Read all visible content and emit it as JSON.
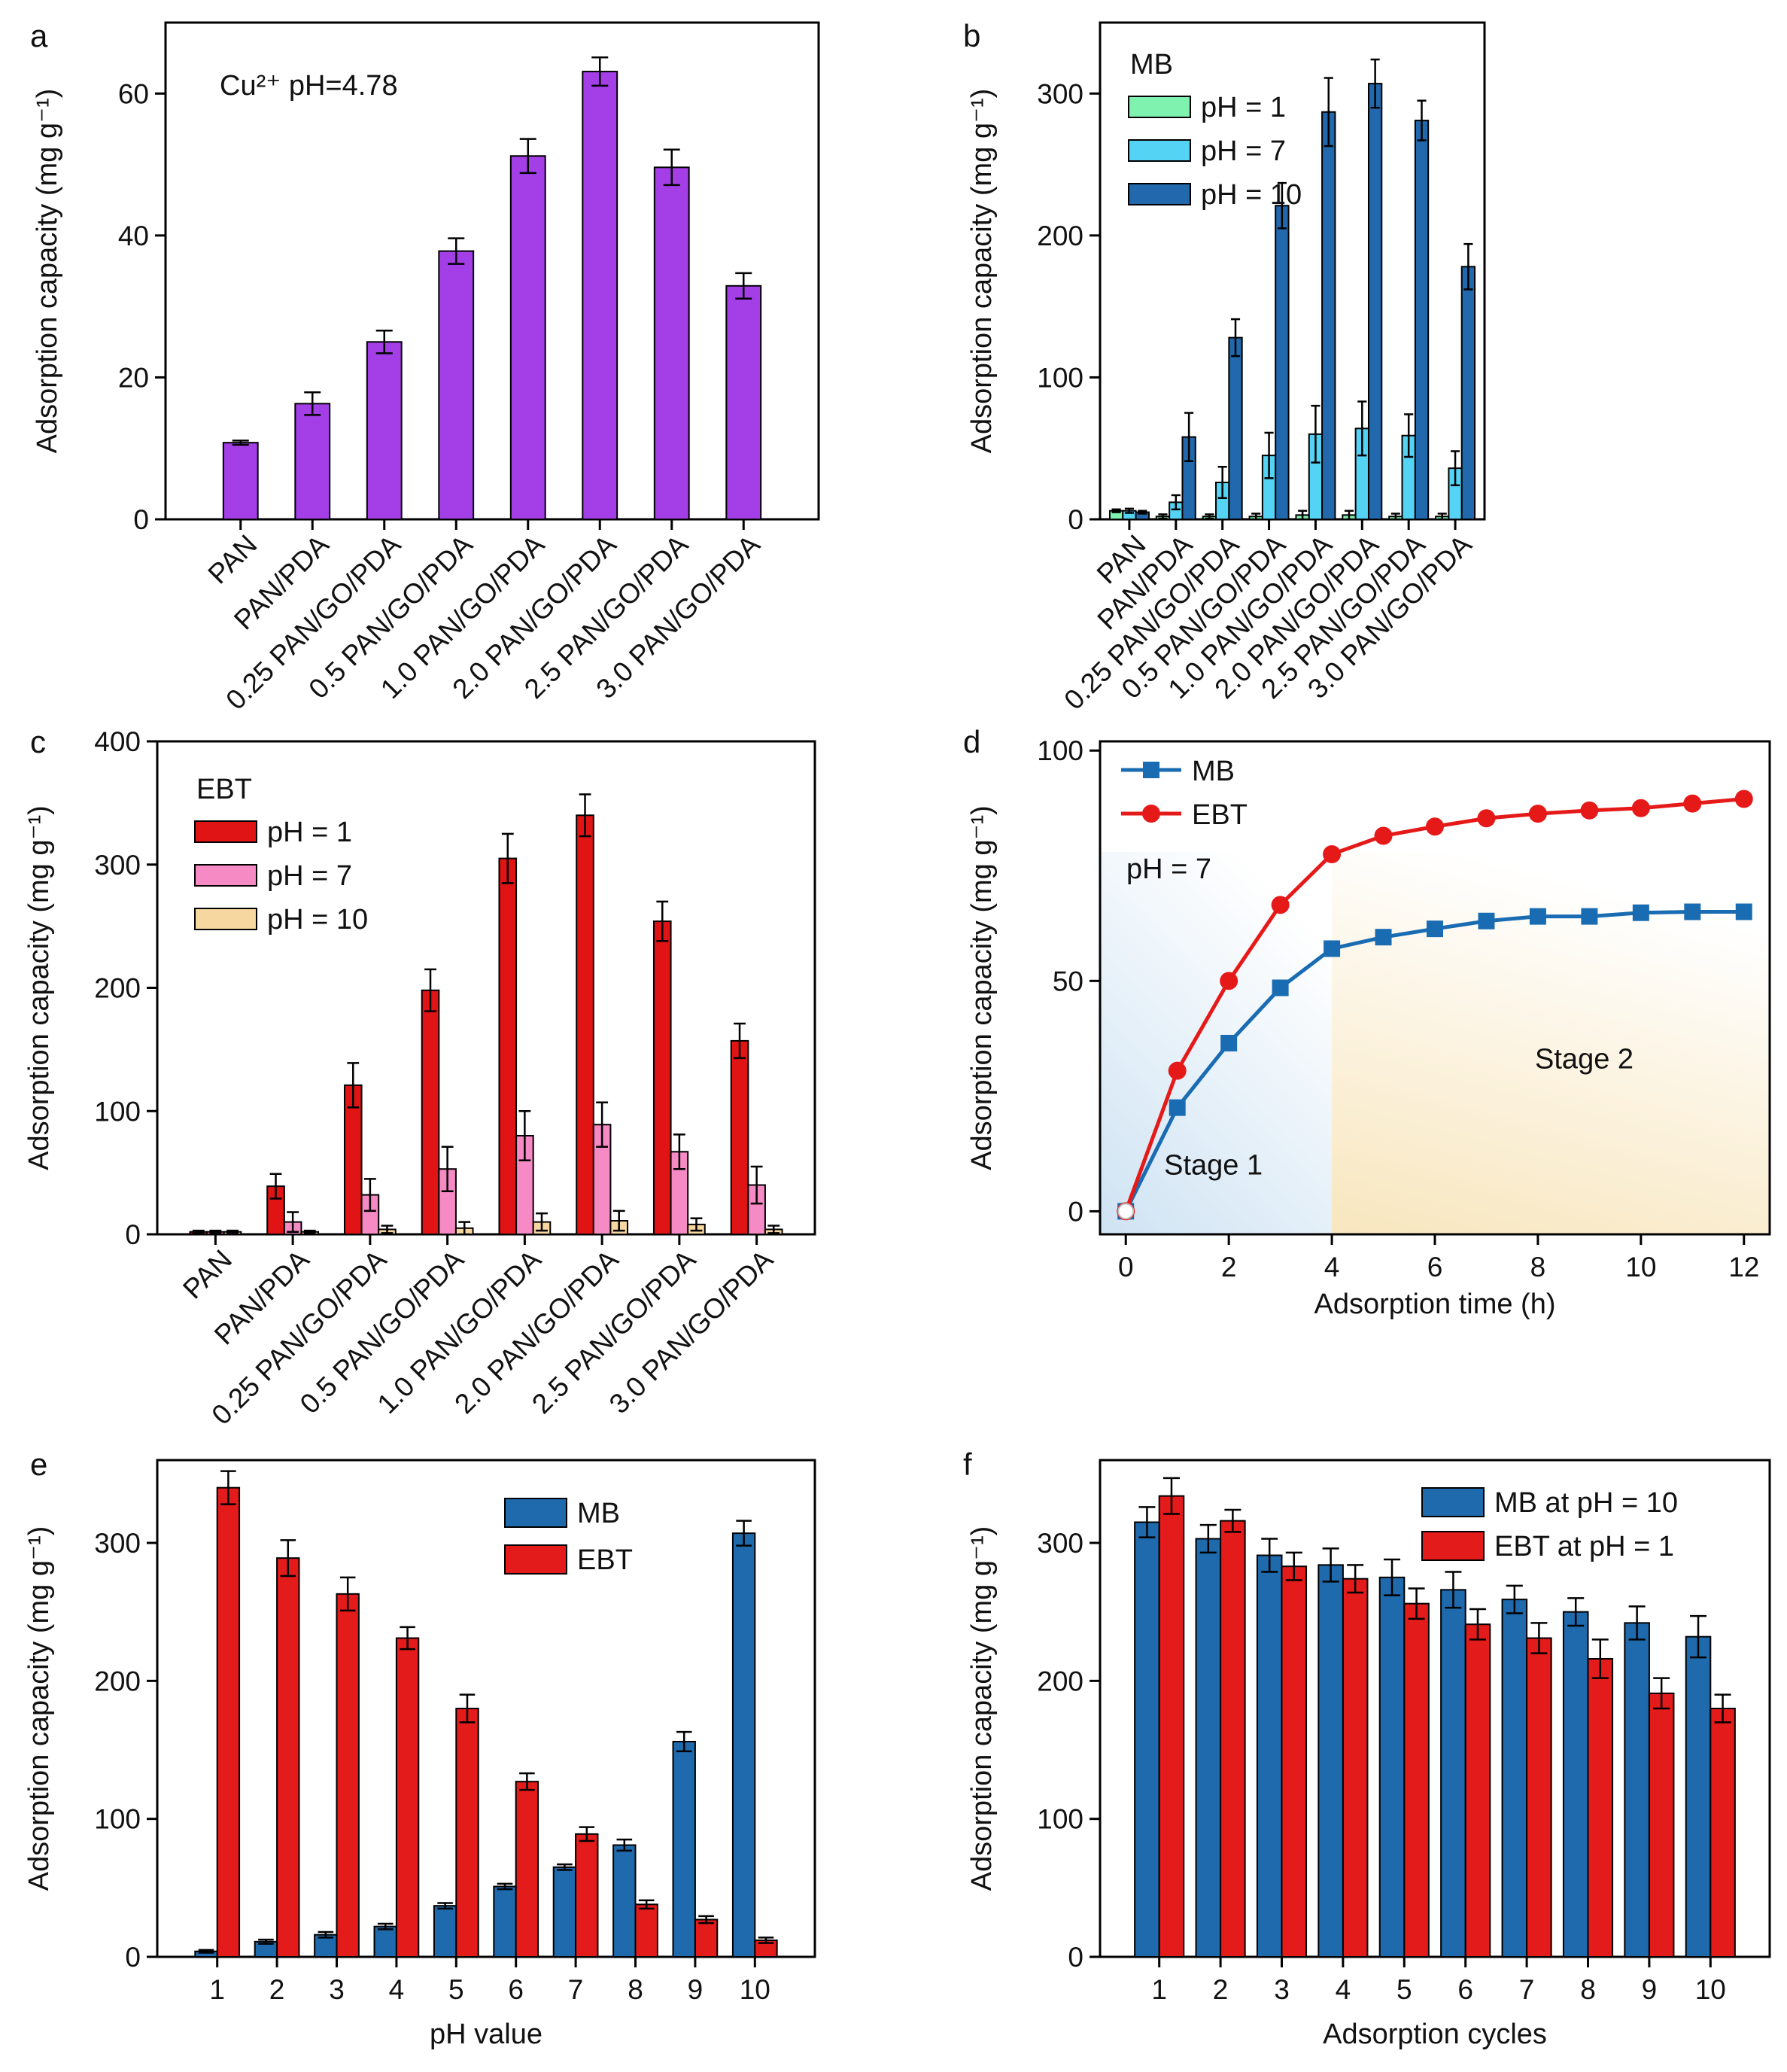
{
  "figure": {
    "panels": [
      "a",
      "b",
      "c",
      "d",
      "e",
      "f"
    ]
  },
  "colors": {
    "purple": "#a43fe8",
    "mb_ph1": "#80f2b0",
    "mb_ph7": "#55d3f5",
    "mb_ph10": "#2169ac",
    "ebt_ph1": "#e01414",
    "ebt_ph7": "#f58ac4",
    "ebt_ph10": "#f7d7a0",
    "line_mb": "#1a6cb2",
    "line_ebt": "#e61919",
    "bar_mb": "#1f6aad",
    "bar_ebt": "#e31b1b",
    "stage1_bg": "#cfe3f3",
    "stage2_bg": "#f8e6be"
  },
  "chart_data": [
    {
      "panel": "a",
      "type": "bar",
      "ylabel": "Adsorption capacity (mg g⁻¹)",
      "xlabel": "",
      "ylim": [
        0,
        70
      ],
      "yticks": [
        0,
        20,
        40,
        60
      ],
      "annotation": "Cu²⁺ pH=4.78",
      "categories": [
        "PAN",
        "PAN/PDA",
        "0.25 PAN/GO/PDA",
        "0.5 PAN/GO/PDA",
        "1.0 PAN/GO/PDA",
        "2.0 PAN/GO/PDA",
        "2.5 PAN/GO/PDA",
        "3.0 PAN/GO/PDA"
      ],
      "series": [
        {
          "name": "Cu²⁺",
          "color": "#a43fe8",
          "values": [
            10.8,
            16.3,
            25,
            37.8,
            51.2,
            63.1,
            49.6,
            32.9
          ],
          "errors": [
            0.3,
            1.6,
            1.6,
            1.8,
            2.4,
            2.0,
            2.5,
            1.8
          ]
        }
      ]
    },
    {
      "panel": "b",
      "type": "bar",
      "ylabel": "Adsorption capacity (mg g⁻¹)",
      "xlabel": "",
      "ylim": [
        0,
        350
      ],
      "yticks": [
        0,
        100,
        200,
        300
      ],
      "legend_title": "MB",
      "legend_position": "top-left",
      "categories": [
        "PAN",
        "PAN/PDA",
        "0.25 PAN/GO/PDA",
        "0.5 PAN/GO/PDA",
        "1.0 PAN/GO/PDA",
        "2.0 PAN/GO/PDA",
        "2.5 PAN/GO/PDA",
        "3.0 PAN/GO/PDA"
      ],
      "series": [
        {
          "name": "pH = 1",
          "color": "#80f2b0",
          "values": [
            6,
            2,
            2,
            2,
            3,
            3,
            2,
            2
          ],
          "errors": [
            1,
            1.5,
            1.5,
            2,
            3,
            3,
            2,
            2
          ]
        },
        {
          "name": "pH = 7",
          "color": "#55d3f5",
          "values": [
            6,
            12,
            26,
            45,
            60,
            64,
            59,
            36
          ],
          "errors": [
            1.5,
            5,
            11,
            16,
            20,
            19,
            15,
            12
          ]
        },
        {
          "name": "pH = 10",
          "color": "#2169ac",
          "values": [
            5,
            58,
            128,
            221,
            287,
            307,
            281,
            178
          ],
          "errors": [
            1,
            17,
            13,
            16,
            24,
            17,
            14,
            16
          ]
        }
      ]
    },
    {
      "panel": "c",
      "type": "bar",
      "ylabel": "Adsorption capacity (mg g⁻¹)",
      "xlabel": "",
      "ylim": [
        0,
        400
      ],
      "yticks": [
        0,
        100,
        200,
        300,
        400
      ],
      "legend_title": "EBT",
      "legend_position": "top-left",
      "categories": [
        "PAN",
        "PAN/PDA",
        "0.25 PAN/GO/PDA",
        "0.5 PAN/GO/PDA",
        "1.0 PAN/GO/PDA",
        "2.0 PAN/GO/PDA",
        "2.5 PAN/GO/PDA",
        "3.0 PAN/GO/PDA"
      ],
      "series": [
        {
          "name": "pH = 1",
          "color": "#e01414",
          "values": [
            2,
            39,
            121,
            198,
            305,
            340,
            254,
            157
          ],
          "errors": [
            1,
            10,
            18,
            17,
            20,
            17,
            16,
            14
          ]
        },
        {
          "name": "pH = 7",
          "color": "#f58ac4",
          "values": [
            2,
            10,
            32,
            53,
            80,
            89,
            67,
            40
          ],
          "errors": [
            1,
            8,
            13,
            18,
            20,
            18,
            14,
            15
          ]
        },
        {
          "name": "pH = 10",
          "color": "#f7d7a0",
          "values": [
            2,
            2,
            4,
            5,
            10,
            11,
            8,
            4
          ],
          "errors": [
            1,
            1,
            3,
            5,
            7,
            8,
            5,
            3
          ]
        }
      ]
    },
    {
      "panel": "d",
      "type": "line",
      "ylabel": "Adsorption capacity (mg g⁻¹)",
      "xlabel": "Adsorption time (h)",
      "xlim": [
        -0.5,
        12.5
      ],
      "ylim": [
        -5,
        102
      ],
      "xticks": [
        0,
        2,
        4,
        6,
        8,
        10,
        12
      ],
      "yticks": [
        0,
        50,
        100
      ],
      "annotation": "pH = 7",
      "regions": [
        {
          "label": "Stage 1",
          "from": -0.5,
          "to": 4
        },
        {
          "label": "Stage 2",
          "from": 4,
          "to": 12.5
        }
      ],
      "x": [
        0,
        1,
        2,
        3,
        4,
        5,
        6,
        7,
        8,
        9,
        10,
        11,
        12
      ],
      "series": [
        {
          "name": "MB",
          "marker": "square",
          "color": "#1a6cb2",
          "values": [
            0,
            22.5,
            36.5,
            48.5,
            57,
            59.5,
            61.3,
            63,
            64,
            64,
            64.8,
            65,
            65
          ]
        },
        {
          "name": "EBT",
          "marker": "circle",
          "color": "#e61919",
          "values": [
            0,
            30.5,
            50,
            66.5,
            77.5,
            81.5,
            83.5,
            85.3,
            86.3,
            87,
            87.5,
            88.5,
            89.5
          ]
        }
      ]
    },
    {
      "panel": "e",
      "type": "bar",
      "ylabel": "Adsorption capacity (mg g⁻¹)",
      "xlabel": "pH value",
      "ylim": [
        0,
        360
      ],
      "yticks": [
        0,
        100,
        200,
        300
      ],
      "legend_position": "top-center",
      "categories": [
        "1",
        "2",
        "3",
        "4",
        "5",
        "6",
        "7",
        "8",
        "9",
        "10"
      ],
      "series": [
        {
          "name": "MB",
          "color": "#1f6aad",
          "values": [
            4,
            11,
            16,
            22,
            37,
            51,
            65,
            81,
            156,
            307
          ],
          "errors": [
            1,
            1.5,
            2,
            2,
            2,
            2,
            2,
            4,
            7,
            9
          ]
        },
        {
          "name": "EBT",
          "color": "#e31b1b",
          "values": [
            340,
            289,
            263,
            231,
            180,
            127,
            89,
            38,
            27,
            12
          ],
          "errors": [
            12,
            13,
            12,
            8,
            10,
            6,
            5,
            3,
            2.5,
            2
          ]
        }
      ]
    },
    {
      "panel": "f",
      "type": "bar",
      "ylabel": "Adsorption capacity (mg g⁻¹)",
      "xlabel": "Adsorption cycles",
      "ylim": [
        0,
        360
      ],
      "yticks": [
        0,
        100,
        200,
        300
      ],
      "legend_position": "top-right",
      "categories": [
        "1",
        "2",
        "3",
        "4",
        "5",
        "6",
        "7",
        "8",
        "9",
        "10"
      ],
      "series": [
        {
          "name": "MB at pH = 10",
          "color": "#1f6aad",
          "values": [
            315,
            303,
            291,
            284,
            275,
            266,
            259,
            250,
            242,
            232
          ],
          "errors": [
            11,
            10,
            12,
            12,
            13,
            13,
            10,
            10,
            12,
            15
          ]
        },
        {
          "name": "EBT at pH = 1",
          "color": "#e31b1b",
          "values": [
            334,
            316,
            283,
            274,
            256,
            241,
            231,
            216,
            191,
            180
          ],
          "errors": [
            13,
            8,
            10,
            10,
            11,
            11,
            11,
            14,
            11,
            10
          ]
        }
      ]
    }
  ]
}
